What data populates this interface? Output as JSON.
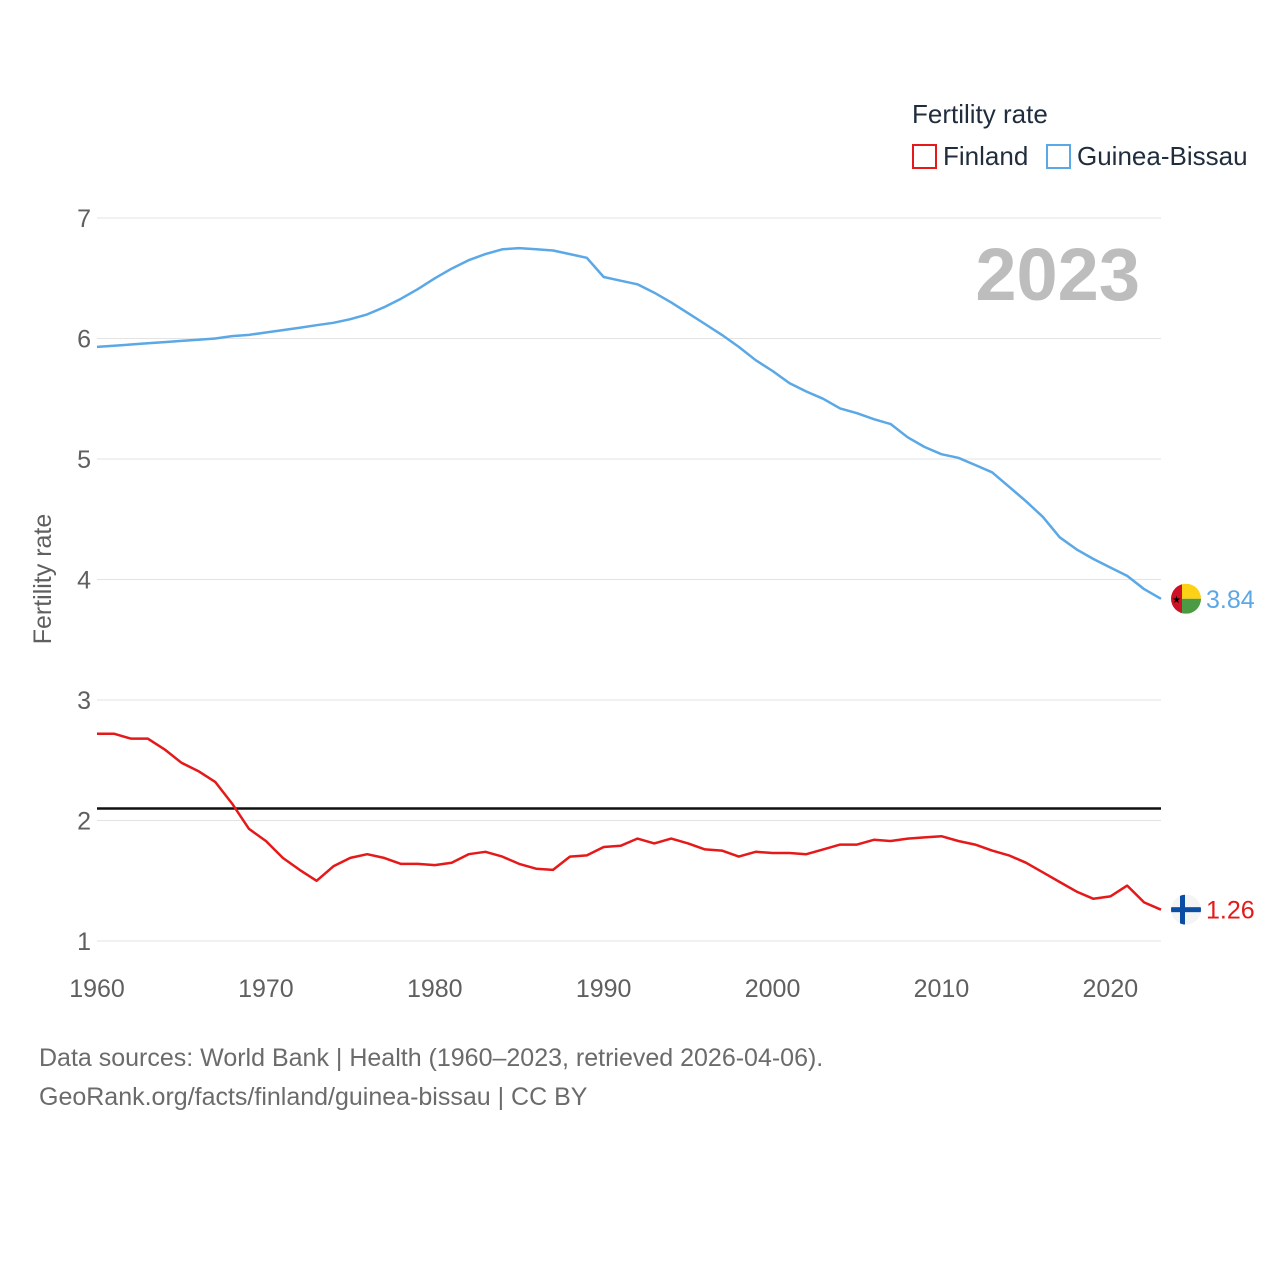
{
  "legend": {
    "title": "Fertility rate",
    "items": [
      {
        "label": "Finland",
        "color": "#e51919"
      },
      {
        "label": "Guinea-Bissau",
        "color": "#5ba8e6"
      }
    ]
  },
  "year_label": "2023",
  "source": {
    "line1": "Data sources: World Bank | Health (1960–2023, retrieved 2026-04-06).",
    "line2": "GeoRank.org/facts/finland/guinea-bissau | CC BY"
  },
  "chart_data": {
    "type": "line",
    "title": "Fertility rate",
    "ylabel": "Fertility rate",
    "xlabel": "",
    "xlim": [
      1960,
      2023
    ],
    "ylim": [
      1,
      7
    ],
    "x_ticks": [
      1960,
      1970,
      1980,
      1990,
      2000,
      2010,
      2020
    ],
    "y_ticks": [
      1,
      2,
      3,
      4,
      5,
      6,
      7
    ],
    "reference_line": {
      "y": 2.1,
      "color": "#111111"
    },
    "grid": true,
    "x": [
      1960,
      1961,
      1962,
      1963,
      1964,
      1965,
      1966,
      1967,
      1968,
      1969,
      1970,
      1971,
      1972,
      1973,
      1974,
      1975,
      1976,
      1977,
      1978,
      1979,
      1980,
      1981,
      1982,
      1983,
      1984,
      1985,
      1986,
      1987,
      1988,
      1989,
      1990,
      1991,
      1992,
      1993,
      1994,
      1995,
      1996,
      1997,
      1998,
      1999,
      2000,
      2001,
      2002,
      2003,
      2004,
      2005,
      2006,
      2007,
      2008,
      2009,
      2010,
      2011,
      2012,
      2013,
      2014,
      2015,
      2016,
      2017,
      2018,
      2019,
      2020,
      2021,
      2022,
      2023
    ],
    "series": [
      {
        "name": "Finland",
        "color": "#e51919",
        "end_label": "1.26",
        "values": [
          2.72,
          2.72,
          2.68,
          2.68,
          2.59,
          2.48,
          2.41,
          2.32,
          2.14,
          1.93,
          1.83,
          1.69,
          1.59,
          1.5,
          1.62,
          1.69,
          1.72,
          1.69,
          1.64,
          1.64,
          1.63,
          1.65,
          1.72,
          1.74,
          1.7,
          1.64,
          1.6,
          1.59,
          1.7,
          1.71,
          1.78,
          1.79,
          1.85,
          1.81,
          1.85,
          1.81,
          1.76,
          1.75,
          1.7,
          1.74,
          1.73,
          1.73,
          1.72,
          1.76,
          1.8,
          1.8,
          1.84,
          1.83,
          1.85,
          1.86,
          1.87,
          1.83,
          1.8,
          1.75,
          1.71,
          1.65,
          1.57,
          1.49,
          1.41,
          1.35,
          1.37,
          1.46,
          1.32,
          1.26
        ]
      },
      {
        "name": "Guinea-Bissau",
        "color": "#5ba8e6",
        "end_label": "3.84",
        "values": [
          5.93,
          5.94,
          5.95,
          5.96,
          5.97,
          5.98,
          5.99,
          6.0,
          6.02,
          6.03,
          6.05,
          6.07,
          6.09,
          6.11,
          6.13,
          6.16,
          6.2,
          6.26,
          6.33,
          6.41,
          6.5,
          6.58,
          6.65,
          6.7,
          6.74,
          6.75,
          6.74,
          6.73,
          6.7,
          6.67,
          6.51,
          6.48,
          6.45,
          6.38,
          6.3,
          6.21,
          6.12,
          6.03,
          5.93,
          5.82,
          5.73,
          5.63,
          5.56,
          5.5,
          5.42,
          5.38,
          5.33,
          5.29,
          5.18,
          5.1,
          5.04,
          5.01,
          4.95,
          4.89,
          4.77,
          4.65,
          4.52,
          4.35,
          4.25,
          4.17,
          4.1,
          4.03,
          3.92,
          3.84
        ]
      }
    ]
  }
}
